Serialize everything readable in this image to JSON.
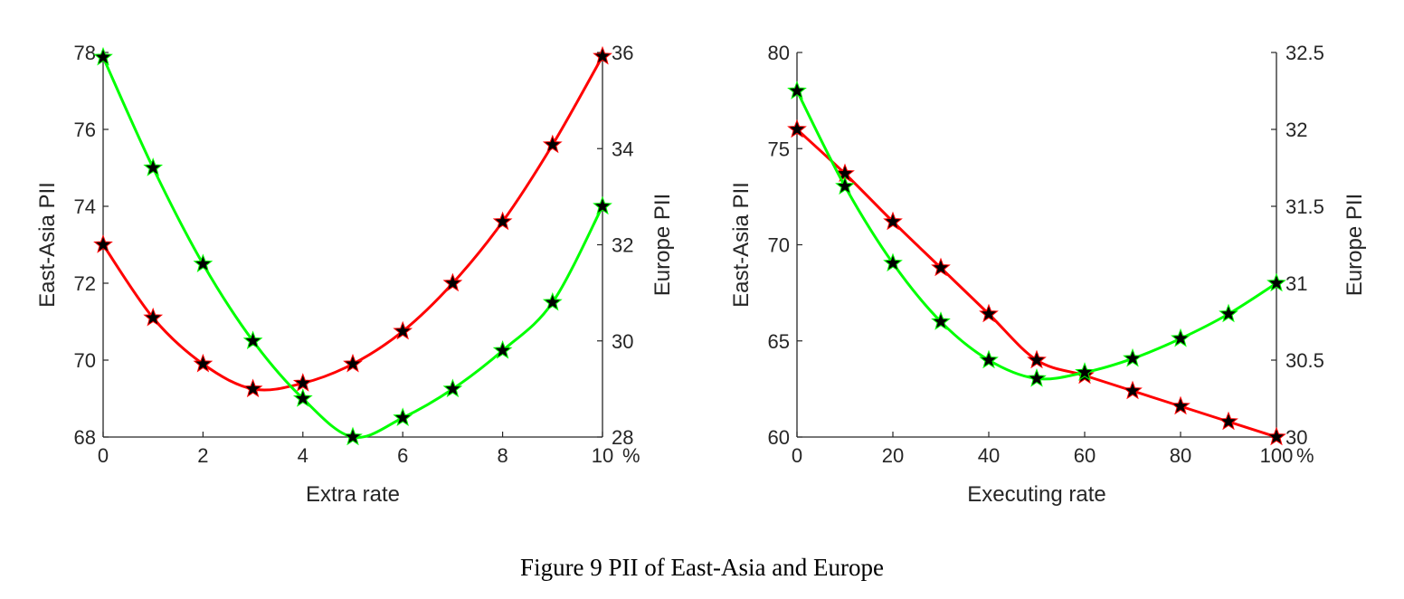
{
  "caption": "Figure 9 PII of East-Asia and Europe",
  "colors": {
    "east_asia": "#ff0000",
    "europe": "#00ff00",
    "marker": "#000000",
    "axis": "#262626"
  },
  "chart_data": [
    {
      "type": "line",
      "xlabel": "Extra rate",
      "ylabel_left": "East-Asia PII",
      "ylabel_right": "Europe PII",
      "x_unit": "%",
      "xlim": [
        0,
        10
      ],
      "ylim_left": [
        68,
        78
      ],
      "ylim_right": [
        28,
        36
      ],
      "x_ticks": [
        0,
        2,
        4,
        6,
        8,
        10
      ],
      "y_ticks_left": [
        68,
        70,
        72,
        74,
        76,
        78
      ],
      "y_ticks_right": [
        28,
        30,
        32,
        34,
        36
      ],
      "x_tick_labels": [
        "0",
        "2",
        "4",
        "6",
        "8",
        "10"
      ],
      "y_tick_labels_left": [
        "68",
        "70",
        "72",
        "74",
        "76",
        "78"
      ],
      "y_tick_labels_right": [
        "28",
        "30",
        "32",
        "34",
        "36"
      ],
      "grid": false,
      "series": [
        {
          "axis": "left",
          "color": "#ff0000",
          "marker": "star",
          "x": [
            0,
            1,
            2,
            3,
            4,
            5,
            6,
            7,
            8,
            9,
            10
          ],
          "values": [
            73.0,
            71.1,
            69.9,
            69.25,
            69.4,
            69.9,
            70.75,
            72.0,
            73.6,
            75.6,
            77.9
          ]
        },
        {
          "axis": "right",
          "color": "#00ff00",
          "marker": "star",
          "x": [
            0,
            1,
            2,
            3,
            4,
            5,
            6,
            7,
            8,
            9,
            10
          ],
          "values": [
            35.9,
            33.6,
            31.6,
            30.0,
            28.8,
            28.0,
            28.4,
            29.0,
            29.8,
            30.8,
            32.8
          ]
        }
      ]
    },
    {
      "type": "line",
      "xlabel": "Executing rate",
      "ylabel_left": "East-Asia PII",
      "ylabel_right": "Europe PII",
      "x_unit": "%",
      "xlim": [
        0,
        100
      ],
      "ylim_left": [
        60,
        80
      ],
      "ylim_right": [
        30,
        32.5
      ],
      "x_ticks": [
        0,
        20,
        40,
        60,
        80,
        100
      ],
      "y_ticks_left": [
        60,
        65,
        70,
        75,
        80
      ],
      "y_ticks_right": [
        30,
        30.5,
        31,
        31.5,
        32,
        32.5
      ],
      "x_tick_labels": [
        "0",
        "20",
        "40",
        "60",
        "80",
        "100"
      ],
      "y_tick_labels_left": [
        "60",
        "65",
        "70",
        "75",
        "80"
      ],
      "y_tick_labels_right": [
        "30",
        "30.5",
        "31",
        "31.5",
        "32",
        "32.5"
      ],
      "grid": false,
      "series": [
        {
          "axis": "left",
          "color": "#ff0000",
          "marker": "star",
          "x": [
            0,
            10,
            20,
            30,
            40,
            50,
            60,
            70,
            80,
            90,
            100
          ],
          "values": [
            76.0,
            73.7,
            71.2,
            68.8,
            66.4,
            64.0,
            63.2,
            62.4,
            61.6,
            60.8,
            60.0
          ]
        },
        {
          "axis": "right",
          "color": "#00ff00",
          "marker": "star",
          "x": [
            0,
            10,
            20,
            30,
            40,
            50,
            60,
            70,
            80,
            90,
            100
          ],
          "values": [
            32.25,
            31.63,
            31.13,
            30.75,
            30.5,
            30.38,
            30.42,
            30.51,
            30.64,
            30.8,
            31.0
          ]
        }
      ]
    }
  ]
}
